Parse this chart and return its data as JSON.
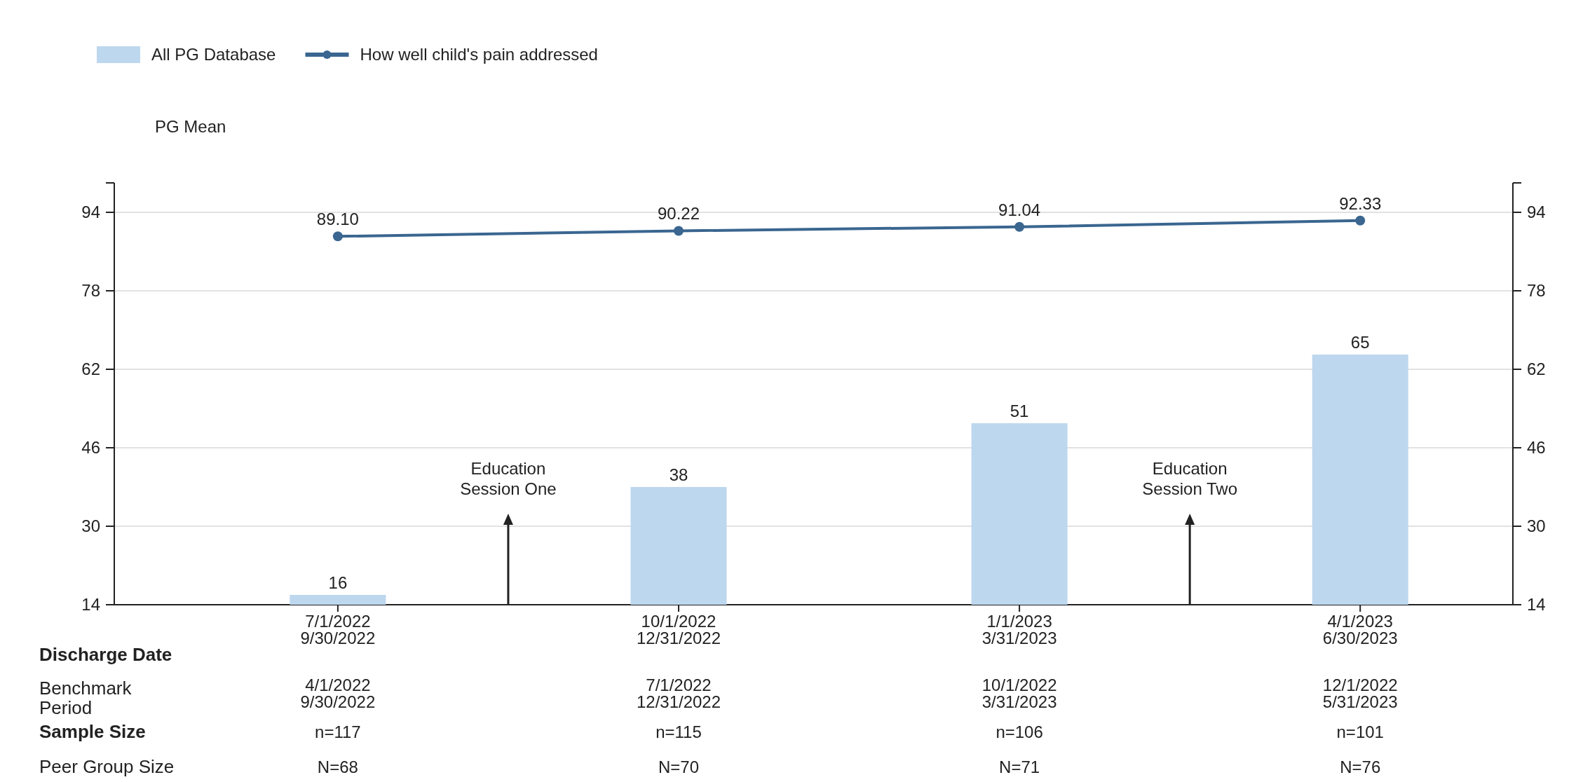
{
  "chart_data": {
    "type": "bar",
    "ylabel": "PG Mean",
    "categories": [
      "7/1/2022\n9/30/2022",
      "10/1/2022\n12/31/2022",
      "1/1/2023\n3/31/2023",
      "4/1/2023\n6/30/2023"
    ],
    "series": [
      {
        "name": "All PG Database",
        "color": "#bdd7ee",
        "values": [
          16,
          38,
          51,
          65
        ],
        "value_labels": [
          "16",
          "38",
          "51",
          "65"
        ]
      },
      {
        "name": "How well child's pain addressed",
        "type": "line",
        "color": "#3a6690",
        "values": [
          89.1,
          90.22,
          91.04,
          92.33
        ],
        "value_labels": [
          "89.10",
          "90.22",
          "91.04",
          "92.33"
        ]
      }
    ],
    "ylim": [
      14,
      100
    ],
    "yticks": [
      14,
      30,
      46,
      62,
      78,
      94
    ],
    "y2lim": [
      14,
      100
    ],
    "y2ticks": [
      14,
      30,
      46,
      62,
      78,
      94
    ],
    "grid": "y",
    "legend": "top left",
    "marker": "circle",
    "line_style": "solid",
    "annotations": [
      "Education\nSession One",
      "Education\nSession Two",
      "Discharge Date",
      "Benchmark\nPeriod",
      "Sample Size",
      "Peer Group Size",
      "4/1/2022\n9/30/2022",
      "7/1/2022\n12/31/2022",
      "10/1/2022\n3/31/2023",
      "12/1/2022\n5/31/2023",
      "n=117",
      "n=115",
      "n=106",
      "n=101",
      "N=68",
      "N=70",
      "N=71",
      "N=76"
    ]
  }
}
